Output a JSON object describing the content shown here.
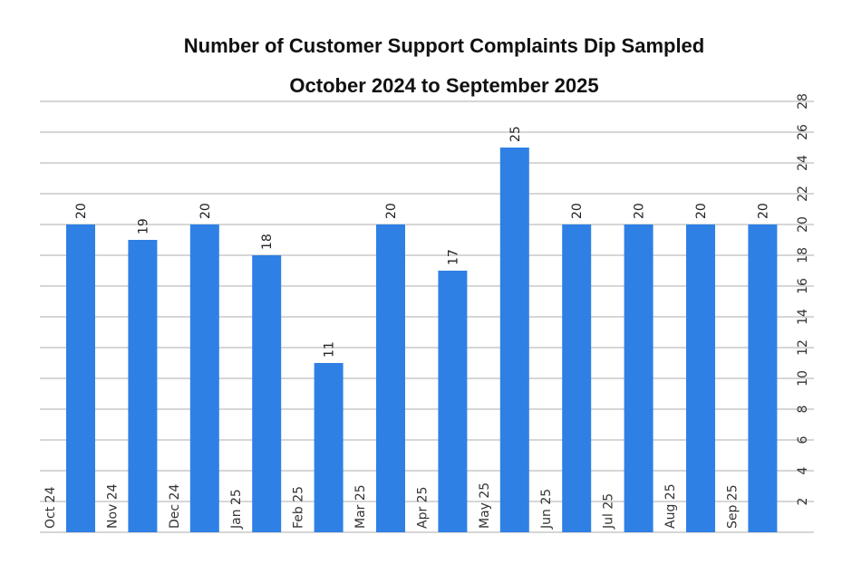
{
  "title": {
    "line1": "Number of Customer   Support Complaints Dip Sampled",
    "line2": "October 2024 to September 2025"
  },
  "colors": {
    "bar": "#2f80e4",
    "grid": "#c8c8c8",
    "text": "#222222"
  },
  "chart_data": {
    "type": "bar",
    "title": "Number of Customer   Support Complaints Dip Sampled October 2024 to September 2025",
    "categories": [
      "Oct 24",
      "Nov 24",
      "Dec 24",
      "Jan 25",
      "Feb 25",
      "Mar 25",
      "Apr 25",
      "May 25",
      "Jun 25",
      "Jul 25",
      "Aug 25",
      "Sep 25"
    ],
    "values": [
      20,
      19,
      20,
      18,
      11,
      20,
      17,
      25,
      20,
      20,
      20,
      20
    ],
    "ylim": [
      0,
      28
    ],
    "yticks": [
      2,
      4,
      6,
      8,
      10,
      12,
      14,
      16,
      18,
      20,
      22,
      24,
      26,
      28
    ],
    "y_axis_side": "right",
    "tick_label_rotation": "vertical",
    "grid": true,
    "legend": "none"
  }
}
